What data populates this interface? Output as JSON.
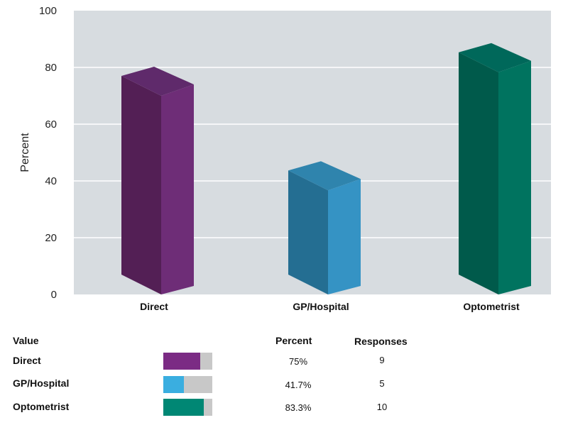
{
  "chart_data": {
    "type": "bar",
    "ylabel": "Percent",
    "ylim": [
      0,
      100
    ],
    "yticks": [
      0,
      20,
      40,
      60,
      80,
      100
    ],
    "grid": true,
    "categories": [
      "Direct",
      "GP/Hospital",
      "Optometrist"
    ],
    "values": [
      75,
      41.7,
      83.3
    ],
    "colors": [
      {
        "front": "#531f55",
        "side": "#6e2d77",
        "top": "#5f2a6b"
      },
      {
        "front": "#246e92",
        "side": "#3593c4",
        "top": "#2f84ad"
      },
      {
        "front": "#005a4b",
        "side": "#00735f",
        "top": "#00685a"
      }
    ]
  },
  "table": {
    "headers": {
      "value": "Value",
      "percent": "Percent",
      "responses": "Responses"
    },
    "rows": [
      {
        "label": "Direct",
        "percent_text": "75%",
        "percent": 75,
        "responses": "9",
        "color": "#7b2b84"
      },
      {
        "label": "GP/Hospital",
        "percent_text": "41.7%",
        "percent": 41.7,
        "responses": "5",
        "color": "#3aaee0"
      },
      {
        "label": "Optometrist",
        "percent_text": "83.3%",
        "percent": 83.3,
        "responses": "10",
        "color": "#008774"
      }
    ]
  }
}
